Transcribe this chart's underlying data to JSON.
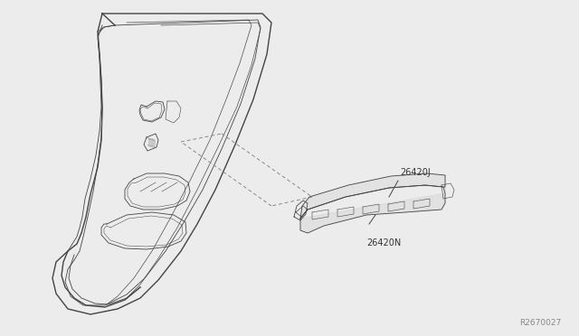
{
  "bg_color": "#ececec",
  "line_color": "#444444",
  "dashed_color": "#888888",
  "label_color": "#333333",
  "watermark": "R2670027",
  "label_26420J": "26420J",
  "label_26420N": "26420N",
  "figsize": [
    6.4,
    3.72
  ],
  "dpi": 100
}
